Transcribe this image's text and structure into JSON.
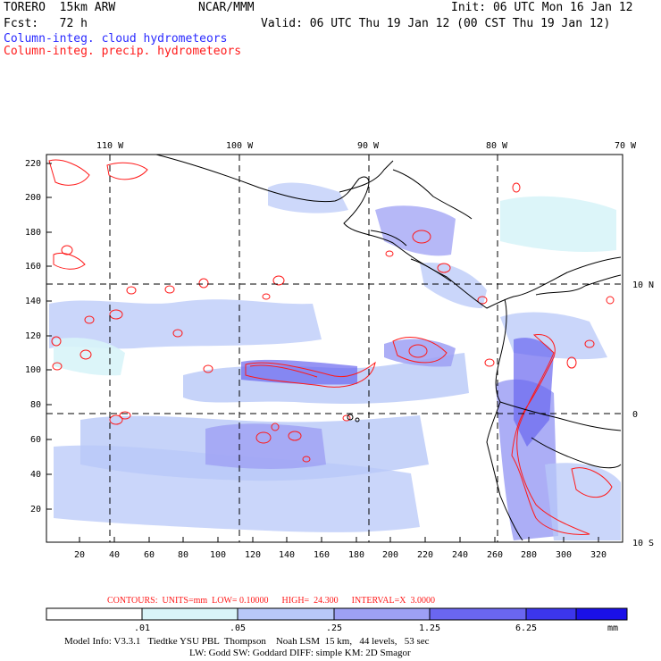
{
  "header": {
    "model": "TORERO  15km ARW",
    "center": "NCAR/MMM",
    "init": "Init: 06 UTC Mon 16 Jan 12",
    "fcst": "Fcst:   72 h",
    "valid": "Valid: 06 UTC Thu 19 Jan 12 (00 CST Thu 19 Jan 12)",
    "field1": "Column-integ. cloud hydrometeors",
    "field2": "Column-integ. precip. hydrometeors"
  },
  "top_axis": [
    "110 W",
    "100 W",
    "90 W",
    "80 W",
    "70 W"
  ],
  "right_axis": [
    "10 N",
    "0",
    "10 S"
  ],
  "left_axis": [
    "220",
    "200",
    "180",
    "160",
    "140",
    "120",
    "100",
    "80",
    "60",
    "40",
    "20"
  ],
  "bottom_axis": [
    "20",
    "40",
    "60",
    "80",
    "100",
    "120",
    "140",
    "160",
    "180",
    "200",
    "220",
    "240",
    "260",
    "280",
    "300",
    "320"
  ],
  "contours_line": "CONTOURS:  UNITS=mm  LOW= 0.10000      HIGH=  24.300      INTERVAL=X  3.0000",
  "colorbar": {
    "ticks": [
      ".01",
      ".05",
      ".25",
      "1.25",
      "6.25"
    ],
    "unit": "mm",
    "colors": [
      "#ffffff",
      "#d8f4f8",
      "#b8c8f8",
      "#9da0f4",
      "#6a66f0",
      "#3c36ec",
      "#1a10e8"
    ]
  },
  "footer": {
    "line1": "Model Info: V3.3.1   Tiedtke YSU PBL  Thompson    Noah LSM  15 km,   44 levels,   53 sec",
    "line2": "LW: Godd SW: Goddard DIFF: simple KM: 2D Smagor"
  }
}
